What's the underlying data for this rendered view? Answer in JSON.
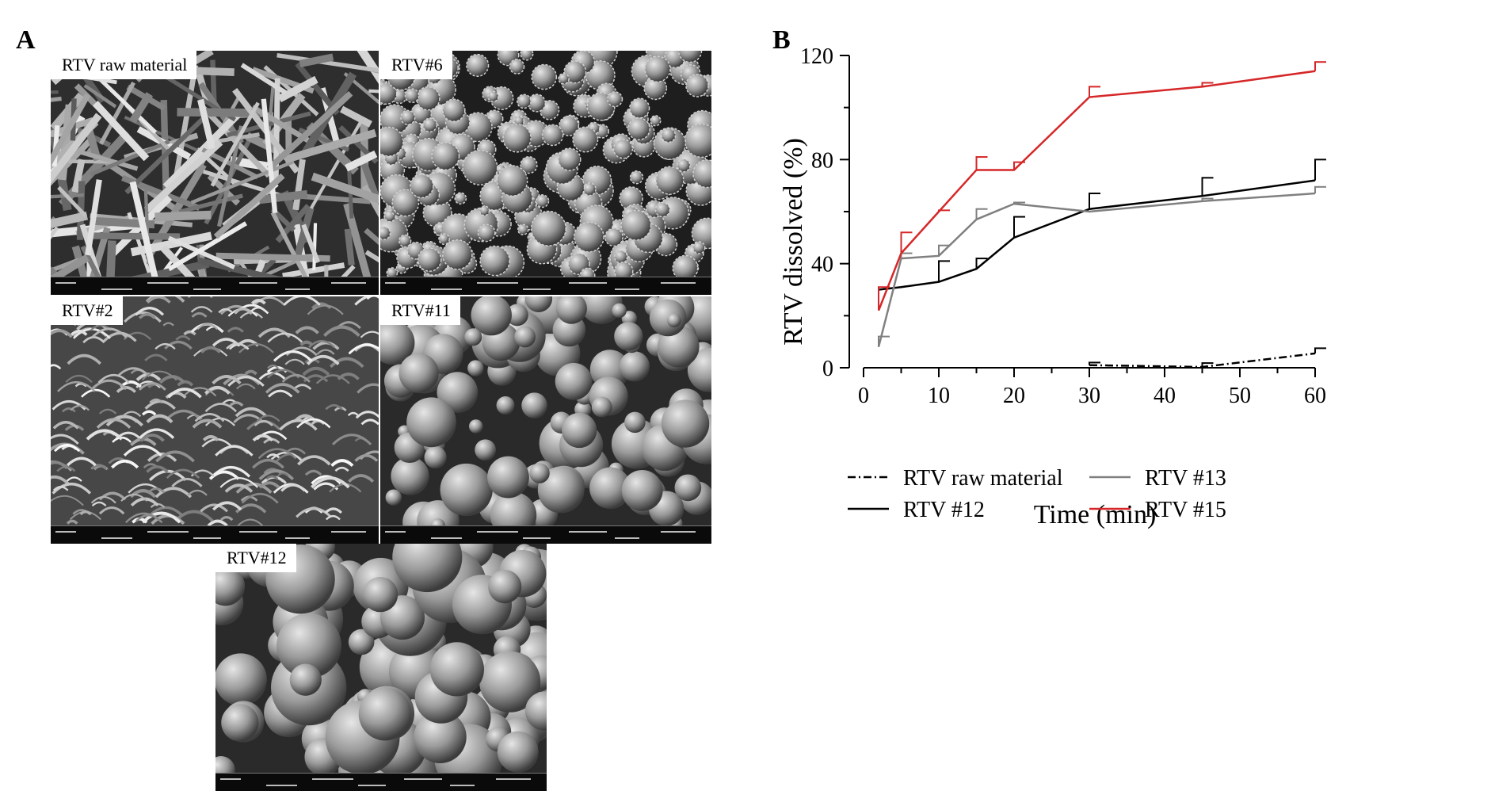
{
  "panels": {
    "a_letter": "A",
    "b_letter": "B"
  },
  "sem_images": [
    {
      "id": "raw",
      "label": "RTV raw material"
    },
    {
      "id": "6",
      "label": "RTV#6"
    },
    {
      "id": "2",
      "label": "RTV#2"
    },
    {
      "id": "11",
      "label": "RTV#11"
    },
    {
      "id": "12",
      "label": "RTV#12"
    }
  ],
  "chart_data": {
    "type": "line",
    "title": "",
    "xlabel": "Time (min)",
    "ylabel": "RTV dissolved (%)",
    "xlim": [
      0,
      60
    ],
    "ylim": [
      0,
      120
    ],
    "xticks": [
      0,
      10,
      20,
      30,
      40,
      50,
      60
    ],
    "yticks": [
      0,
      40,
      80,
      120
    ],
    "grid": false,
    "legend_position": "bottom",
    "series": [
      {
        "name": "RTV raw material",
        "color": "#000000",
        "dash": "dashdot",
        "x": [
          30,
          45,
          60
        ],
        "y": [
          1,
          0.3,
          5.5
        ],
        "err": [
          1,
          1.5,
          2
        ]
      },
      {
        "name": "RTV #12",
        "color": "#000000",
        "dash": "solid",
        "x": [
          2,
          5,
          10,
          15,
          20,
          30,
          45,
          60
        ],
        "y": [
          30,
          31,
          33,
          38,
          50,
          61,
          66,
          72
        ],
        "err": [
          0,
          0,
          8,
          4,
          8,
          6,
          7,
          8
        ]
      },
      {
        "name": "RTV #13",
        "color": "#808080",
        "dash": "solid",
        "x": [
          2,
          5,
          10,
          15,
          20,
          30,
          45,
          60
        ],
        "y": [
          8,
          42,
          43,
          57,
          63,
          60,
          64,
          67
        ],
        "err": [
          4,
          2,
          4,
          4,
          0.5,
          0,
          1,
          2.5
        ]
      },
      {
        "name": "RTV #15",
        "color": "#d62728",
        "dash": "solid",
        "x": [
          2,
          5,
          10,
          15,
          20,
          30,
          45,
          60
        ],
        "y": [
          22,
          44,
          60,
          76,
          76,
          104,
          108,
          114
        ],
        "err": [
          9,
          8,
          0.5,
          5,
          3,
          4,
          1.5,
          3.5
        ]
      }
    ]
  }
}
